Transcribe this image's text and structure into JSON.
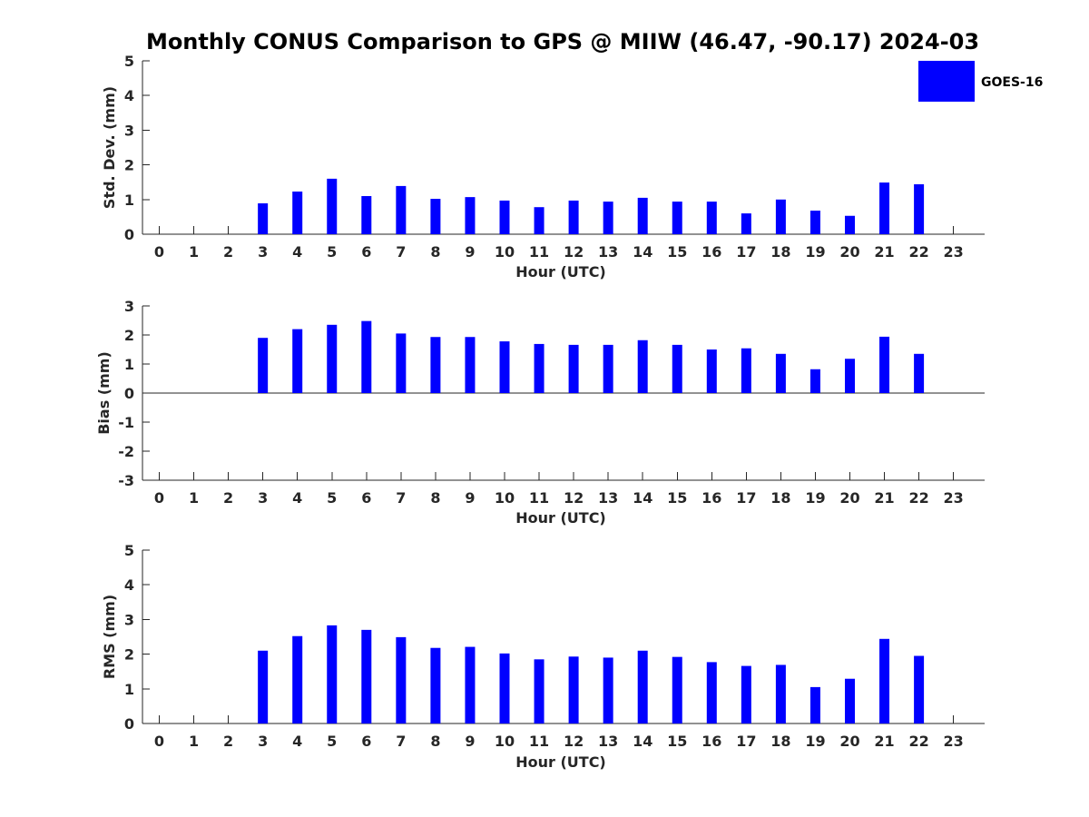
{
  "figure": {
    "title": "Monthly CONUS Comparison to GPS @ MIIW (46.47, -90.17) 2024-03"
  },
  "legend": {
    "label": "GOES-16",
    "color": "#0000ff"
  },
  "chart_data": [
    {
      "type": "bar",
      "panel": "std-dev",
      "xlabel": "Hour (UTC)",
      "ylabel": "Std. Dev. (mm)",
      "ylim": [
        0,
        5
      ],
      "yticks": [
        0,
        1,
        2,
        3,
        4,
        5
      ],
      "xticks": [
        0,
        1,
        2,
        3,
        4,
        5,
        6,
        7,
        8,
        9,
        10,
        11,
        12,
        13,
        14,
        15,
        16,
        17,
        18,
        19,
        20,
        21,
        22,
        23
      ],
      "grid": false,
      "legend_position": "top-right",
      "series": [
        {
          "name": "GOES-16",
          "color": "#0000ff",
          "x": [
            3,
            4,
            5,
            6,
            7,
            8,
            9,
            10,
            11,
            12,
            13,
            14,
            15,
            16,
            17,
            18,
            19,
            20,
            21,
            22
          ],
          "values": [
            0.89,
            1.23,
            1.6,
            1.1,
            1.39,
            1.02,
            1.07,
            0.97,
            0.78,
            0.97,
            0.94,
            1.05,
            0.94,
            0.94,
            0.6,
            1.0,
            0.68,
            0.53,
            1.49,
            1.44
          ]
        }
      ]
    },
    {
      "type": "bar",
      "panel": "bias",
      "xlabel": "Hour (UTC)",
      "ylabel": "Bias (mm)",
      "ylim": [
        -3,
        3
      ],
      "yticks": [
        -3,
        -2,
        -1,
        0,
        1,
        2,
        3
      ],
      "xticks": [
        0,
        1,
        2,
        3,
        4,
        5,
        6,
        7,
        8,
        9,
        10,
        11,
        12,
        13,
        14,
        15,
        16,
        17,
        18,
        19,
        20,
        21,
        22,
        23
      ],
      "grid": false,
      "zero_line": true,
      "series": [
        {
          "name": "GOES-16",
          "color": "#0000ff",
          "x": [
            3,
            4,
            5,
            6,
            7,
            8,
            9,
            10,
            11,
            12,
            13,
            14,
            15,
            16,
            17,
            18,
            19,
            20,
            21,
            22
          ],
          "values": [
            1.9,
            2.2,
            2.35,
            2.48,
            2.05,
            1.93,
            1.93,
            1.78,
            1.69,
            1.66,
            1.66,
            1.82,
            1.66,
            1.5,
            1.54,
            1.35,
            0.82,
            1.18,
            1.94,
            1.35
          ]
        }
      ]
    },
    {
      "type": "bar",
      "panel": "rms",
      "xlabel": "Hour (UTC)",
      "ylabel": "RMS (mm)",
      "ylim": [
        0,
        5
      ],
      "yticks": [
        0,
        1,
        2,
        3,
        4,
        5
      ],
      "xticks": [
        0,
        1,
        2,
        3,
        4,
        5,
        6,
        7,
        8,
        9,
        10,
        11,
        12,
        13,
        14,
        15,
        16,
        17,
        18,
        19,
        20,
        21,
        22,
        23
      ],
      "grid": false,
      "series": [
        {
          "name": "GOES-16",
          "color": "#0000ff",
          "x": [
            3,
            4,
            5,
            6,
            7,
            8,
            9,
            10,
            11,
            12,
            13,
            14,
            15,
            16,
            17,
            18,
            19,
            20,
            21,
            22
          ],
          "values": [
            2.1,
            2.52,
            2.83,
            2.7,
            2.49,
            2.18,
            2.21,
            2.02,
            1.85,
            1.93,
            1.9,
            2.1,
            1.92,
            1.77,
            1.66,
            1.69,
            1.05,
            1.29,
            2.44,
            1.95
          ]
        }
      ]
    }
  ]
}
